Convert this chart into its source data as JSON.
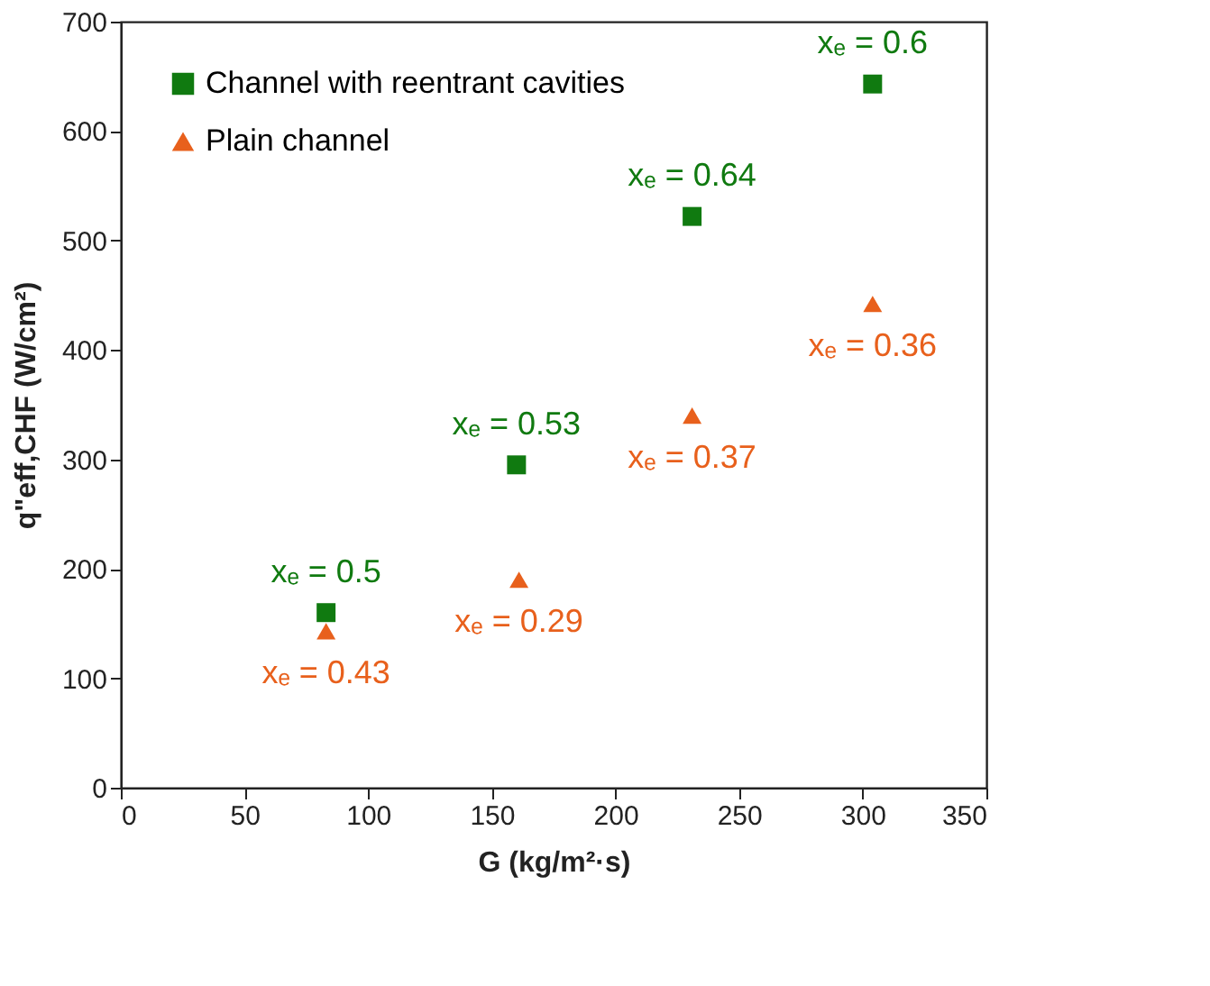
{
  "chart_data": {
    "type": "scatter",
    "xlabel": "G (kg/m²·s)",
    "ylabel": "q\"eff,CHF (W/cm²)",
    "xlim": [
      0,
      350
    ],
    "xticks": [
      0,
      50,
      100,
      150,
      200,
      250,
      300,
      350
    ],
    "ylim": [
      0,
      700
    ],
    "yticks": [
      0,
      100,
      200,
      300,
      400,
      500,
      600,
      700
    ],
    "grid": false,
    "legend": "top left",
    "series": [
      {
        "name": "Channel with reentrant cavities",
        "color": "#107a10",
        "marker": "square",
        "x": [
          83,
          160,
          231,
          304
        ],
        "values": [
          160,
          295,
          522,
          643
        ]
      },
      {
        "name": "Plain channel",
        "color": "#e8601c",
        "marker": "triangle",
        "x": [
          83,
          161,
          231,
          304
        ],
        "values": [
          143,
          190,
          340,
          442
        ]
      }
    ],
    "annotations": [
      {
        "text": "xₑ = 0.5",
        "x": 83,
        "y": 160
      },
      {
        "text": "xₑ = 0.53",
        "x": 160,
        "y": 295
      },
      {
        "text": "xₑ = 0.64",
        "x": 231,
        "y": 522
      },
      {
        "text": "xₑ = 0.6",
        "x": 304,
        "y": 643
      },
      {
        "text": "xₑ = 0.43",
        "x": 83,
        "y": 143
      },
      {
        "text": "xₑ = 0.29",
        "x": 161,
        "y": 190
      },
      {
        "text": "xₑ = 0.37",
        "x": 231,
        "y": 340
      },
      {
        "text": "xₑ = 0.36",
        "x": 304,
        "y": 442
      }
    ]
  }
}
